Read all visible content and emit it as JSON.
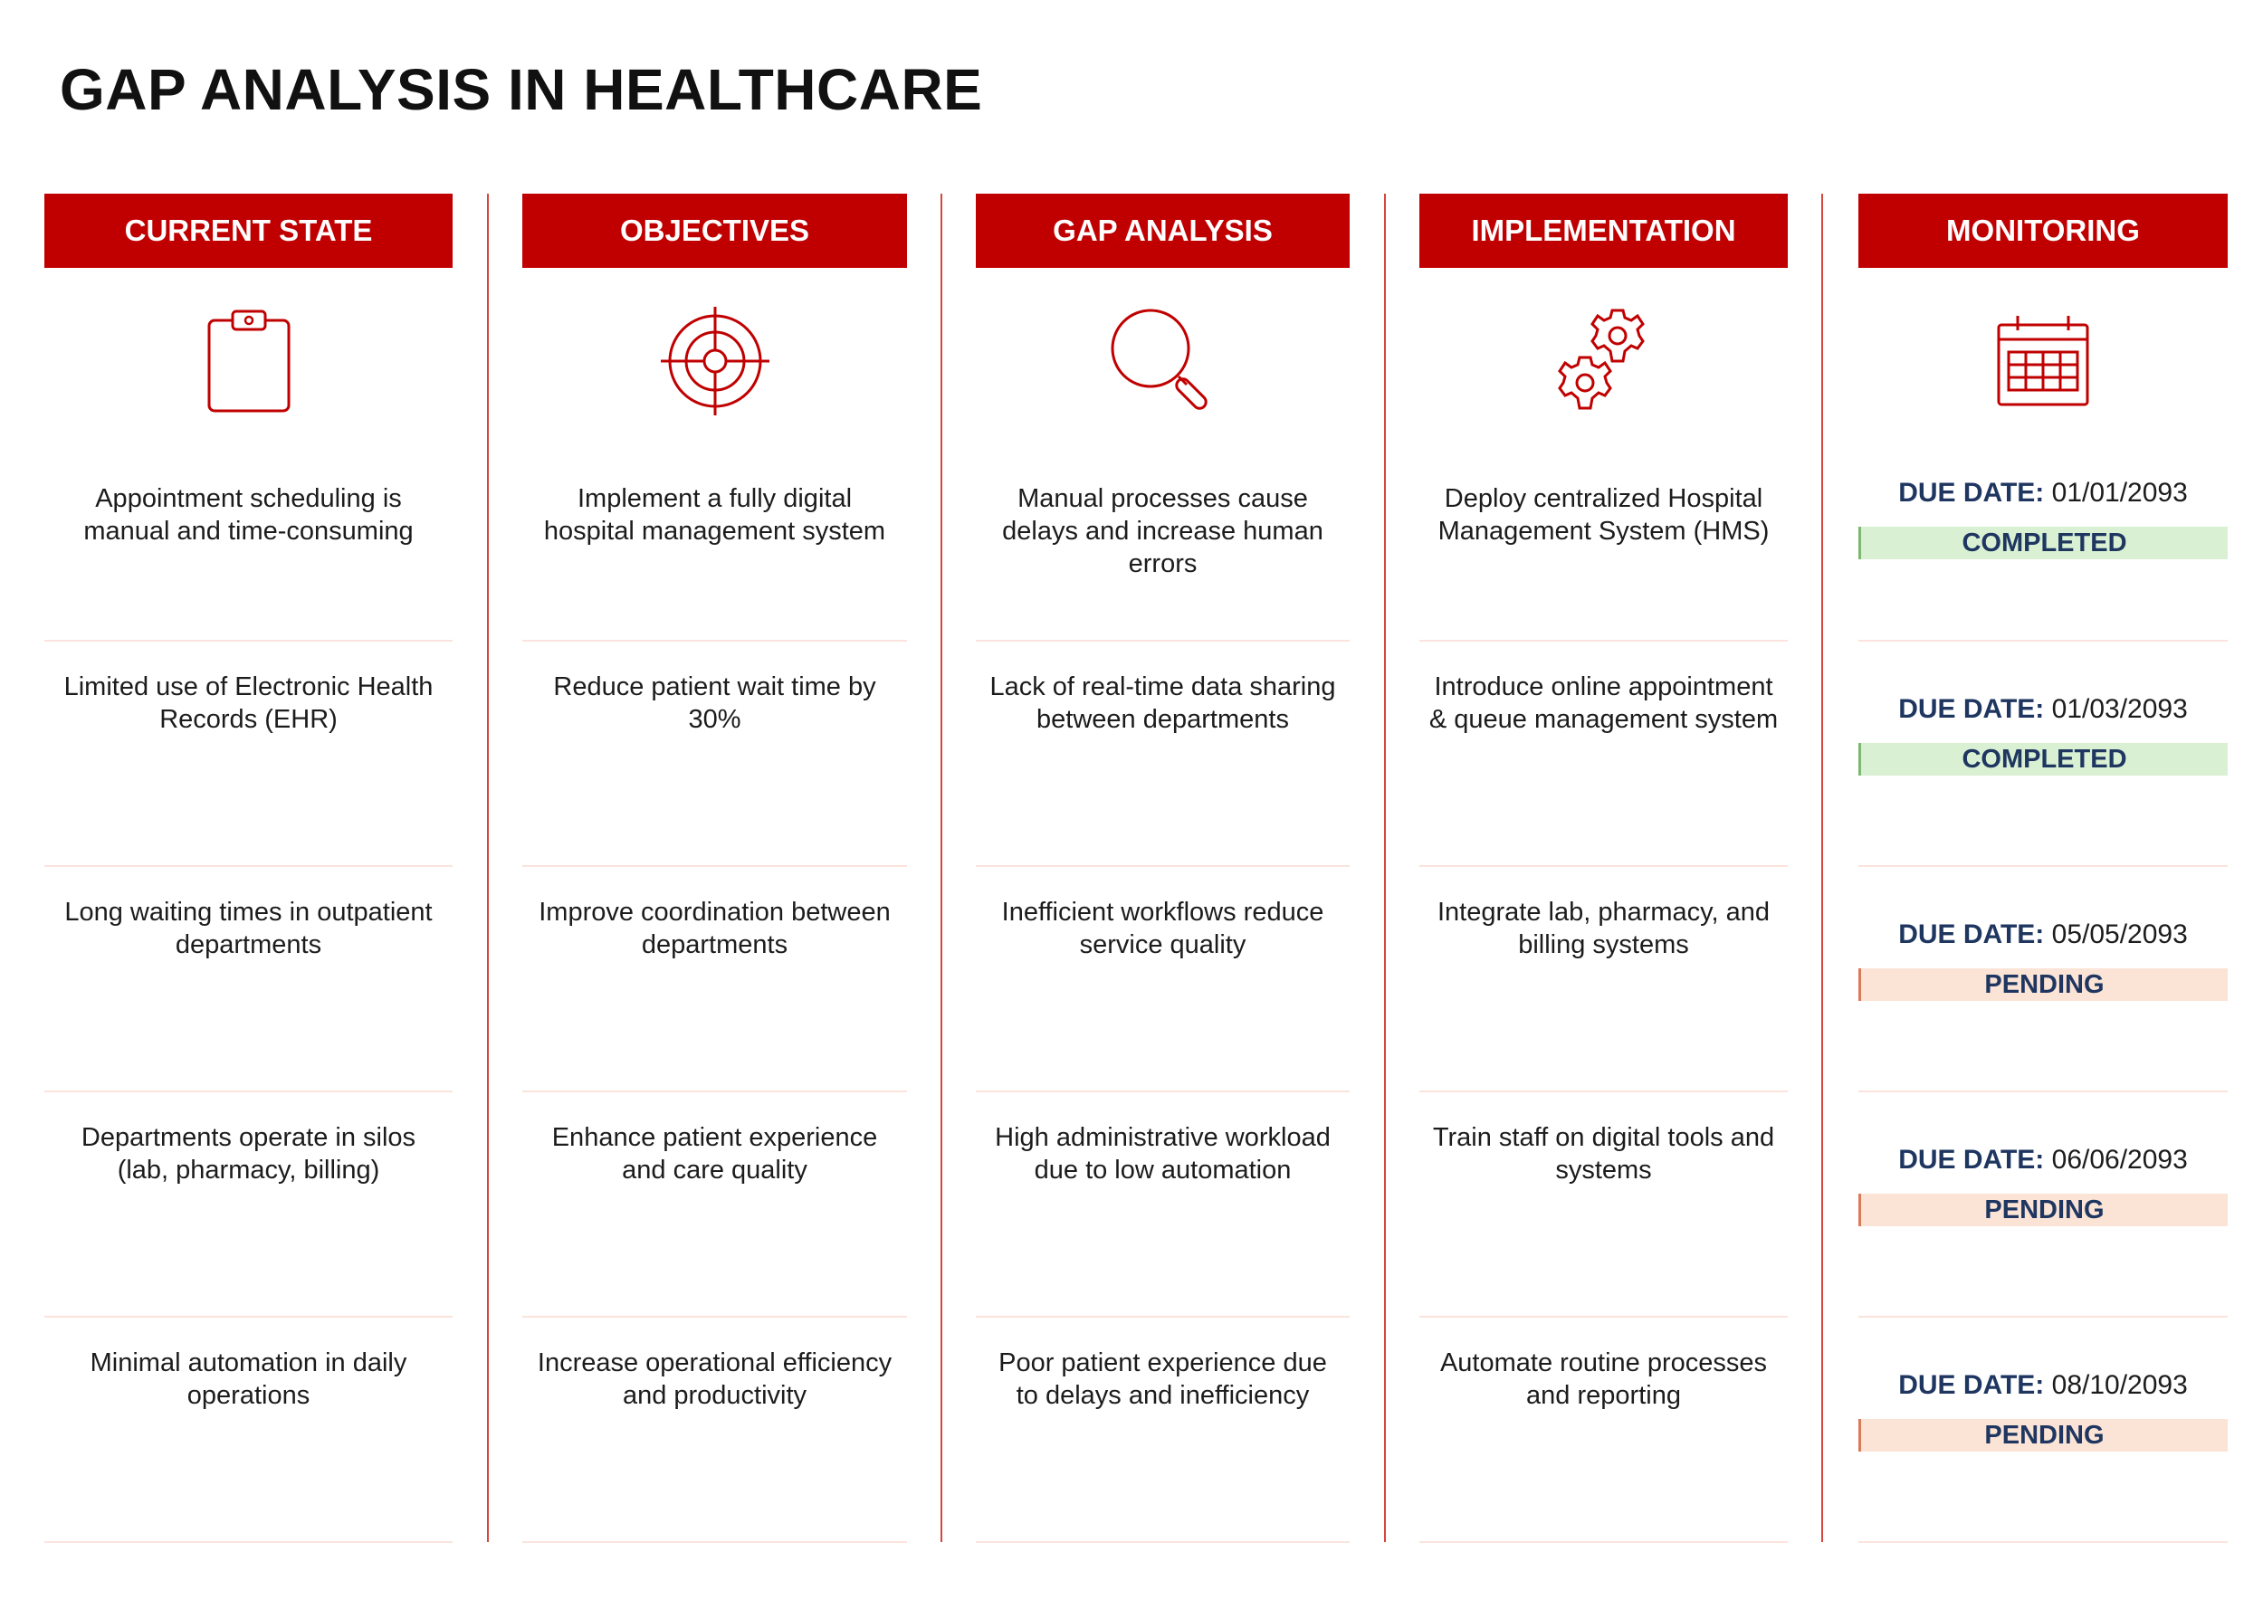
{
  "title": "GAP ANALYSIS IN HEALTHCARE",
  "columns": [
    {
      "header": "CURRENT STATE",
      "icon": "clipboard-icon",
      "rows": [
        "Appointment scheduling is manual and time-consuming",
        "Limited use of Electronic Health Records (EHR)",
        "Long waiting times in outpatient departments",
        "Departments operate in silos (lab, pharmacy, billing)",
        "Minimal automation in daily operations"
      ]
    },
    {
      "header": "OBJECTIVES",
      "icon": "target-icon",
      "rows": [
        "Implement a fully digital hospital management system",
        "Reduce patient wait time by 30%",
        "Improve coordination between departments",
        "Enhance patient experience and care quality",
        "Increase operational efficiency and productivity"
      ]
    },
    {
      "header": "GAP ANALYSIS",
      "icon": "magnifier-icon",
      "rows": [
        "Manual processes cause delays and increase human errors",
        "Lack of real-time data sharing between departments",
        "Inefficient workflows reduce service quality",
        "High administrative workload due to low automation",
        "Poor patient experience due to delays and inefficiency"
      ]
    },
    {
      "header": "IMPLEMENTATION",
      "icon": "gears-icon",
      "rows": [
        "Deploy centralized Hospital Management System (HMS)",
        "Introduce online appointment & queue management system",
        "Integrate lab, pharmacy, and billing systems",
        "Train staff on digital tools and systems",
        "Automate routine processes and reporting"
      ]
    }
  ],
  "monitoring": {
    "header": "MONITORING",
    "icon": "calendar-icon",
    "due_label": "DUE DATE:",
    "rows": [
      {
        "date": "01/01/2093",
        "status": "COMPLETED"
      },
      {
        "date": "01/03/2093",
        "status": "COMPLETED"
      },
      {
        "date": "05/05/2093",
        "status": "PENDING"
      },
      {
        "date": "06/06/2093",
        "status": "PENDING"
      },
      {
        "date": "08/10/2093",
        "status": "PENDING"
      }
    ]
  },
  "colors": {
    "accent": "#c00000",
    "completed_bg": "#d9f0d3",
    "pending_bg": "#fbe3d6",
    "due_label": "#1e3660"
  }
}
